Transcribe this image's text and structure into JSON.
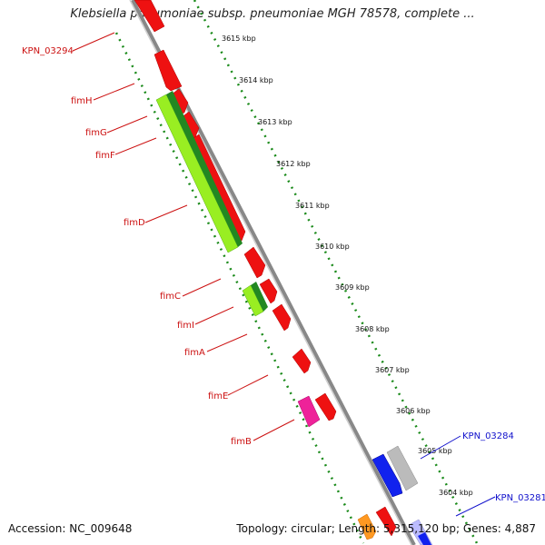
{
  "title": "Klebsiella pneumoniae subsp. pneumoniae MGH 78578, complete ...",
  "accession_text": "Accession: NC_009648",
  "stats_text": "Topology: circular; Length: 5,315,120 bp; Genes: 4,887",
  "colors": {
    "backbone": "#888888",
    "ruler": "#1a8a1a",
    "forward_gene": "#ee1111",
    "fim_light": "#99ee22",
    "fim_dark": "#228822",
    "magenta": "#ee2299",
    "blue": "#1122ee",
    "grey_gene": "#bbbbbb",
    "orange": "#ff9922",
    "label_red": "#cc1111",
    "label_blue": "#1111cc"
  },
  "ticks": [
    {
      "label": "3615 kbp"
    },
    {
      "label": "3614 kbp"
    },
    {
      "label": "3613 kbp"
    },
    {
      "label": "3612 kbp"
    },
    {
      "label": "3611 kbp"
    },
    {
      "label": "3610 kbp"
    },
    {
      "label": "3609 kbp"
    },
    {
      "label": "3608 kbp"
    },
    {
      "label": "3607 kbp"
    },
    {
      "label": "3606 kbp"
    },
    {
      "label": "3605 kbp"
    },
    {
      "label": "3604 kbp"
    }
  ],
  "gene_labels": [
    {
      "name": "KPN_03294",
      "color": "red"
    },
    {
      "name": "fimH",
      "color": "red"
    },
    {
      "name": "fimG",
      "color": "red"
    },
    {
      "name": "fimF",
      "color": "red"
    },
    {
      "name": "fimD",
      "color": "red"
    },
    {
      "name": "fimC",
      "color": "red"
    },
    {
      "name": "fimI",
      "color": "red"
    },
    {
      "name": "fimA",
      "color": "red"
    },
    {
      "name": "fimE",
      "color": "red"
    },
    {
      "name": "fimB",
      "color": "red"
    },
    {
      "name": "KPN_03284",
      "color": "blue"
    },
    {
      "name": "KPN_03281",
      "color": "blue"
    }
  ]
}
